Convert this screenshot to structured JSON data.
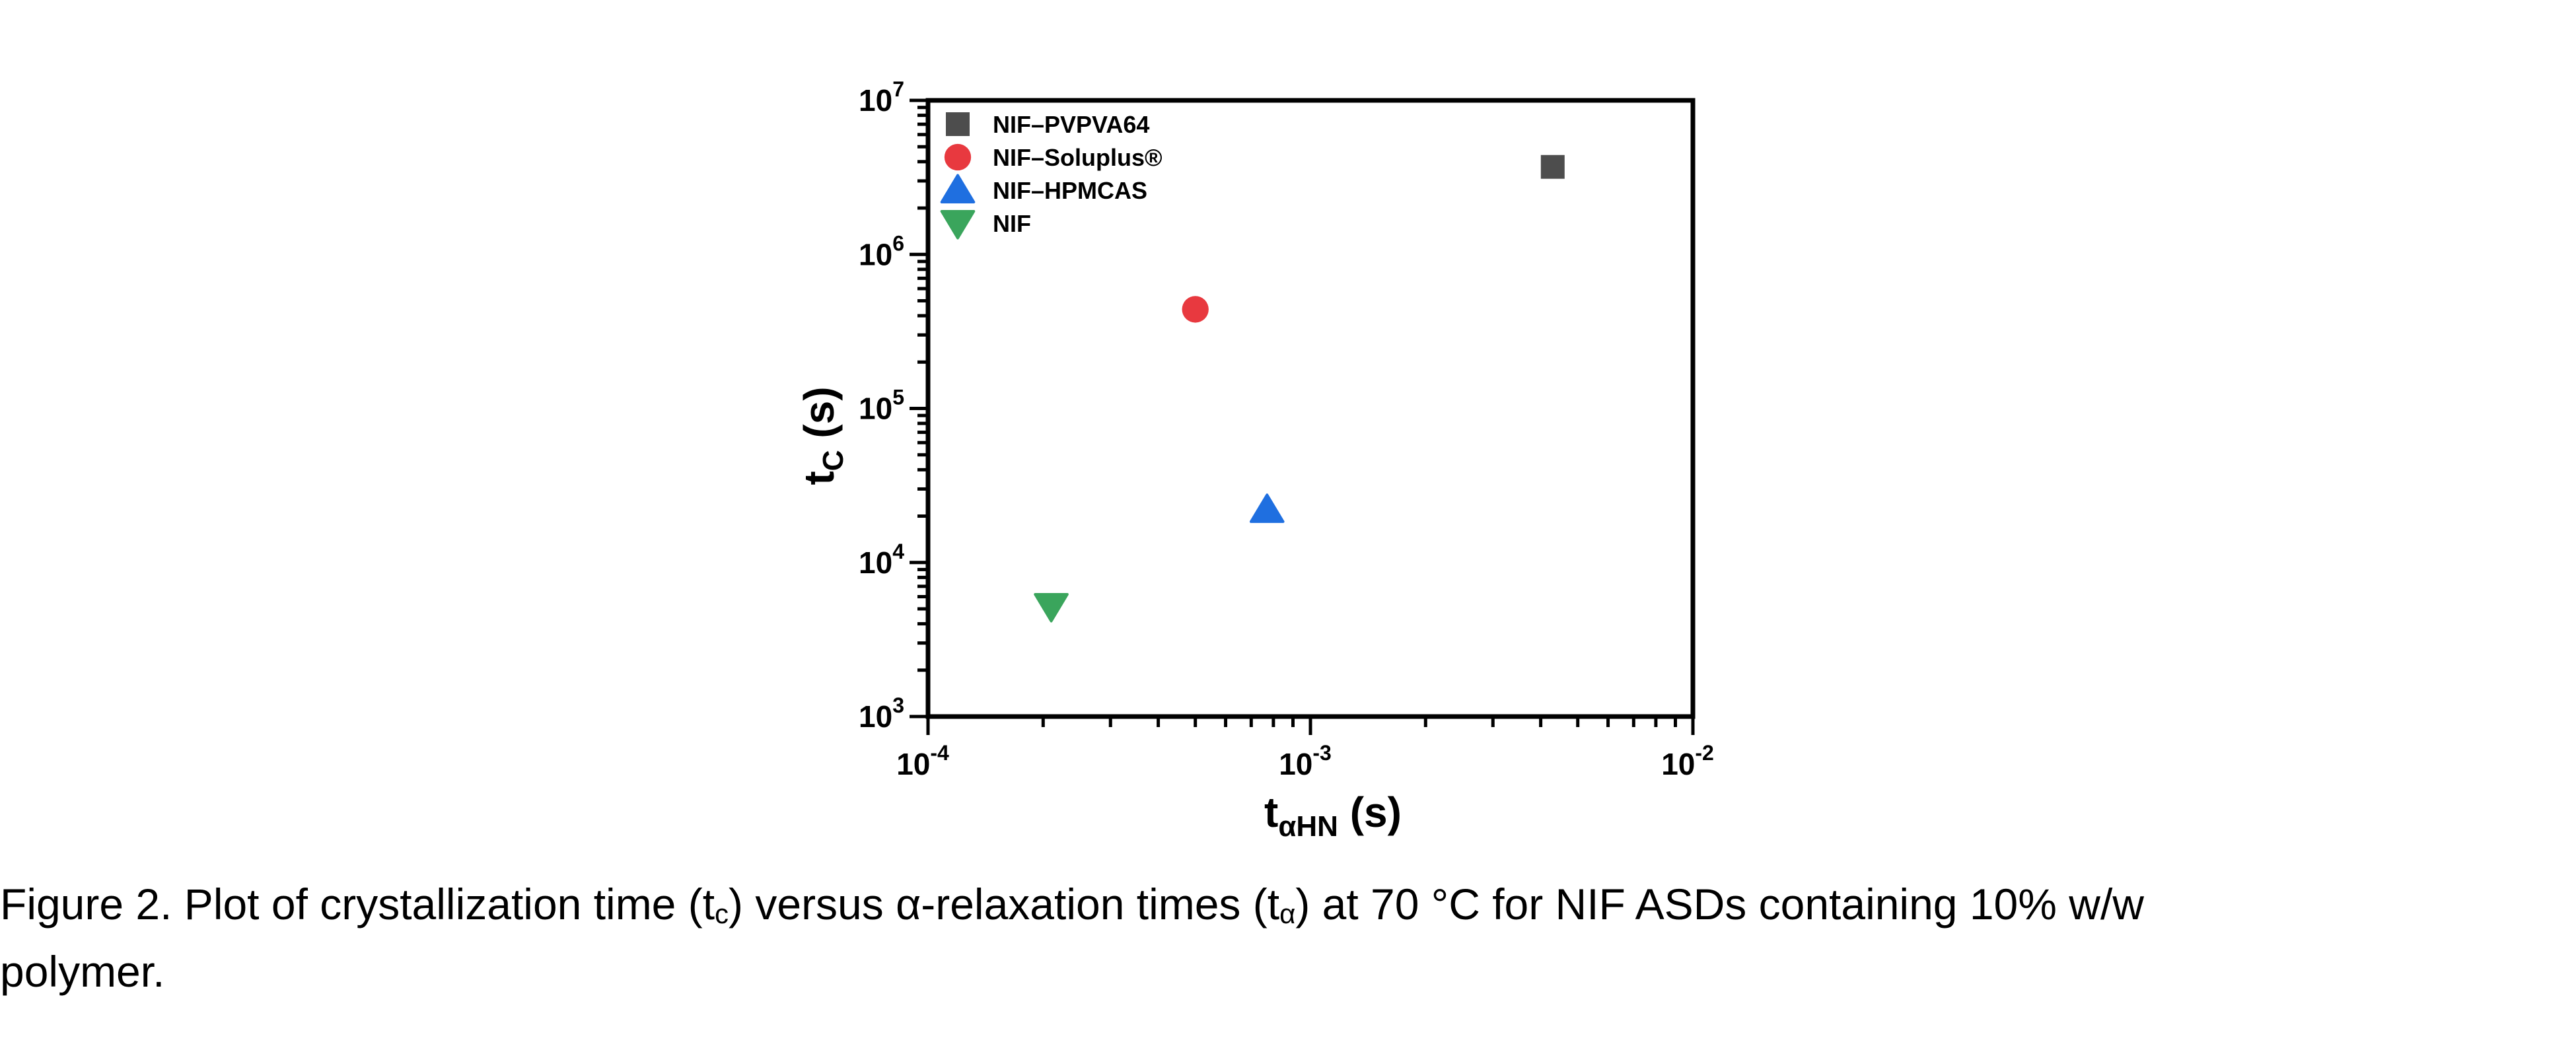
{
  "chart_data": {
    "type": "scatter",
    "xlabel": {
      "main": "t",
      "sub": "αHN",
      "unit": " (s)"
    },
    "ylabel": {
      "main": "t",
      "sub": "C",
      "unit": " (s)"
    },
    "xscale": "log",
    "yscale": "log",
    "xlim": [
      0.0001,
      0.01
    ],
    "ylim": [
      1000,
      10000000
    ],
    "x_ticks": [
      {
        "value": 0.0001,
        "base": "10",
        "exp": "-4"
      },
      {
        "value": 0.001,
        "base": "10",
        "exp": "-3"
      },
      {
        "value": 0.01,
        "base": "10",
        "exp": "-2"
      }
    ],
    "y_ticks": [
      {
        "value": 1000,
        "base": "10",
        "exp": "3"
      },
      {
        "value": 10000,
        "base": "10",
        "exp": "4"
      },
      {
        "value": 100000,
        "base": "10",
        "exp": "5"
      },
      {
        "value": 1000000,
        "base": "10",
        "exp": "6"
      },
      {
        "value": 10000000,
        "base": "10",
        "exp": "7"
      }
    ],
    "grid": false,
    "legend_position": "top-left",
    "series": [
      {
        "name": "NIF–PVPVA64",
        "marker": "square",
        "color": "#4d4d4d",
        "points": [
          {
            "x": 0.0043,
            "y": 3700000
          }
        ]
      },
      {
        "name": "NIF–Soluplus®",
        "marker": "circle",
        "color": "#e8393f",
        "points": [
          {
            "x": 0.0005,
            "y": 440000
          }
        ]
      },
      {
        "name": "NIF–HPMCAS",
        "marker": "triangle-up",
        "color": "#1f6fe0",
        "points": [
          {
            "x": 0.00077,
            "y": 22000
          }
        ]
      },
      {
        "name": "NIF",
        "marker": "triangle-down",
        "color": "#3aa55c",
        "points": [
          {
            "x": 0.00021,
            "y": 5200
          }
        ]
      }
    ]
  },
  "caption": {
    "line1_a": "Figure 2. Plot of crystallization time (t",
    "line1_sub1": "c",
    "line1_b": ") versus α-relaxation times (t",
    "line1_sub2": "α",
    "line1_c": ") at 70 °C for NIF ASDs containing 10% w/w",
    "line2": "polymer."
  }
}
